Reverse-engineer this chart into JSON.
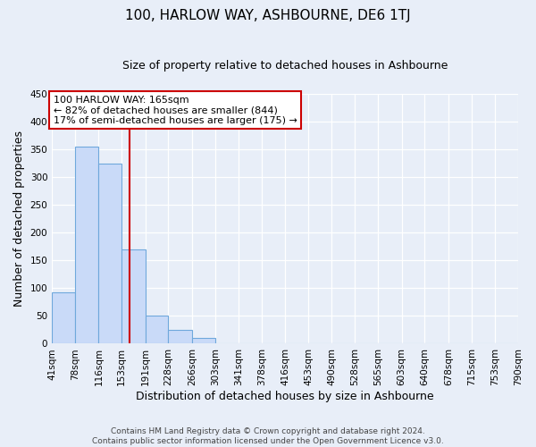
{
  "title": "100, HARLOW WAY, ASHBOURNE, DE6 1TJ",
  "subtitle": "Size of property relative to detached houses in Ashbourne",
  "xlabel": "Distribution of detached houses by size in Ashbourne",
  "ylabel": "Number of detached properties",
  "bin_edges": [
    41,
    78,
    116,
    153,
    191,
    228,
    266,
    303,
    341,
    378,
    416,
    453,
    490,
    528,
    565,
    603,
    640,
    678,
    715,
    753,
    790
  ],
  "bar_heights": [
    93,
    355,
    325,
    170,
    50,
    25,
    10,
    0,
    0,
    0,
    0,
    0,
    0,
    0,
    0,
    0,
    0,
    0,
    0,
    0
  ],
  "bar_color": "#c9daf8",
  "bar_edge_color": "#6fa8dc",
  "background_color": "#e8eef8",
  "grid_color": "#ffffff",
  "red_line_x": 165,
  "ylim": [
    0,
    450
  ],
  "xlim_left": 41,
  "xlim_right": 790,
  "annotation_line1": "100 HARLOW WAY: 165sqm",
  "annotation_line2": "← 82% of detached houses are smaller (844)",
  "annotation_line3": "17% of semi-detached houses are larger (175) →",
  "annotation_box_color": "#ffffff",
  "annotation_box_edge": "#cc0000",
  "footer_line1": "Contains HM Land Registry data © Crown copyright and database right 2024.",
  "footer_line2": "Contains public sector information licensed under the Open Government Licence v3.0.",
  "title_fontsize": 11,
  "subtitle_fontsize": 9,
  "ylabel_fontsize": 9,
  "xlabel_fontsize": 9,
  "tick_fontsize": 7.5,
  "annotation_fontsize": 8,
  "footer_fontsize": 6.5
}
